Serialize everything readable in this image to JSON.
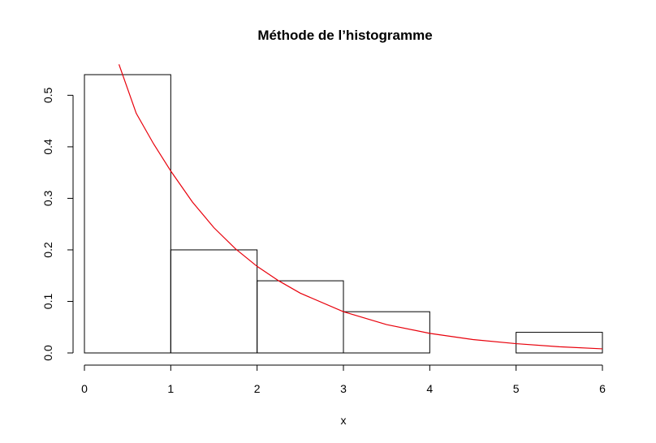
{
  "chart_data": {
    "type": "bar",
    "title": "Méthode de l’histogramme",
    "xlabel": "x",
    "ylabel": "",
    "bins": [
      {
        "from": 0,
        "to": 1,
        "value": 0.54
      },
      {
        "from": 1,
        "to": 2,
        "value": 0.2
      },
      {
        "from": 2,
        "to": 3,
        "value": 0.14
      },
      {
        "from": 3,
        "to": 4,
        "value": 0.08
      },
      {
        "from": 4,
        "to": 5,
        "value": 0.0
      },
      {
        "from": 5,
        "to": 6,
        "value": 0.04
      }
    ],
    "xlim": [
      0,
      6
    ],
    "ylim": [
      0,
      0.54
    ],
    "x_ticks": [
      0,
      1,
      2,
      3,
      4,
      5,
      6
    ],
    "x_tick_labels": [
      "0",
      "1",
      "2",
      "3",
      "4",
      "5",
      "6"
    ],
    "y_ticks": [
      0,
      0.1,
      0.2,
      0.3,
      0.4,
      0.5
    ],
    "y_tick_labels": [
      "0.0",
      "0.1",
      "0.2",
      "0.3",
      "0.4",
      "0.5"
    ],
    "overlay_curve": {
      "type": "line",
      "color": "#e8000b",
      "x": [
        0.4,
        0.6,
        0.8,
        1.0,
        1.25,
        1.5,
        1.75,
        2.0,
        2.25,
        2.5,
        3.0,
        3.5,
        4.0,
        4.5,
        5.0,
        5.5,
        6.0
      ],
      "y": [
        0.56,
        0.465,
        0.406,
        0.353,
        0.293,
        0.243,
        0.202,
        0.168,
        0.14,
        0.116,
        0.08,
        0.055,
        0.038,
        0.026,
        0.018,
        0.012,
        0.008
      ]
    },
    "grid": false
  }
}
